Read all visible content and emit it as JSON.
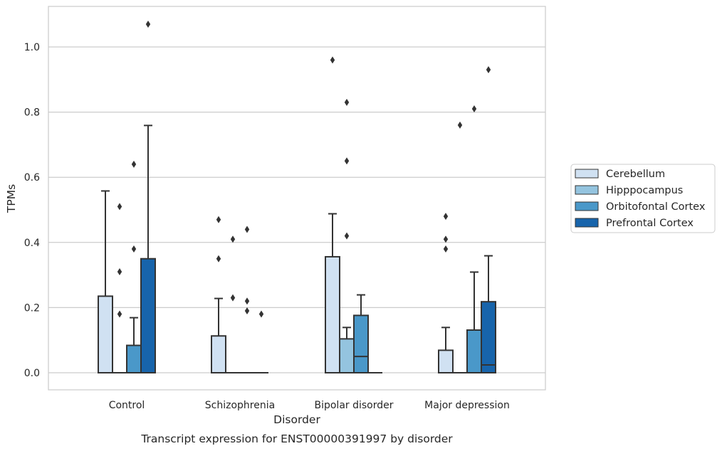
{
  "caption": "Transcript expression for ENST00000391997 by disorder",
  "chart_data": {
    "type": "box",
    "xlabel": "Disorder",
    "ylabel": "TPMs",
    "ylim": [
      -0.05,
      1.13
    ],
    "yticks": [
      "0.0",
      "0.2",
      "0.4",
      "0.6",
      "0.8",
      "1.0"
    ],
    "grid": "horizontal",
    "legend_position": "right",
    "categories": [
      "Control",
      "Schizophrenia",
      "Bipolar disorder",
      "Major depression"
    ],
    "series": [
      {
        "name": "Cerebellum",
        "color": "#d0e1f2",
        "boxes": [
          {
            "q1": 0.0,
            "median": 0.0,
            "q3": 0.235,
            "whisker_low": 0.0,
            "whisker_high": 0.558,
            "outliers": []
          },
          {
            "q1": 0.0,
            "median": 0.0,
            "q3": 0.113,
            "whisker_low": 0.0,
            "whisker_high": 0.228,
            "outliers": [
              0.35,
              0.47
            ]
          },
          {
            "q1": 0.0,
            "median": 0.0,
            "q3": 0.356,
            "whisker_low": 0.0,
            "whisker_high": 0.488,
            "outliers": [
              0.96
            ]
          },
          {
            "q1": 0.0,
            "median": 0.0,
            "q3": 0.069,
            "whisker_low": 0.0,
            "whisker_high": 0.139,
            "outliers": [
              0.38,
              0.41,
              0.48
            ]
          }
        ]
      },
      {
        "name": "Hipppocampus",
        "color": "#94c4df",
        "boxes": [
          {
            "q1": 0.0,
            "median": 0.0,
            "q3": 0.0,
            "whisker_low": 0.0,
            "whisker_high": 0.0,
            "outliers": [
              0.18,
              0.31,
              0.51
            ]
          },
          {
            "q1": 0.0,
            "median": 0.0,
            "q3": 0.0,
            "whisker_low": 0.0,
            "whisker_high": 0.0,
            "outliers": [
              0.23,
              0.41
            ]
          },
          {
            "q1": 0.0,
            "median": 0.0,
            "q3": 0.104,
            "whisker_low": 0.0,
            "whisker_high": 0.139,
            "outliers": [
              0.42,
              0.65,
              0.83
            ]
          },
          {
            "q1": 0.0,
            "median": 0.0,
            "q3": 0.0,
            "whisker_low": 0.0,
            "whisker_high": 0.0,
            "outliers": [
              0.76
            ]
          }
        ]
      },
      {
        "name": "Orbitofontal Cortex",
        "color": "#4a98c9",
        "boxes": [
          {
            "q1": 0.0,
            "median": 0.0,
            "q3": 0.084,
            "whisker_low": 0.0,
            "whisker_high": 0.169,
            "outliers": [
              0.38,
              0.64
            ]
          },
          {
            "q1": 0.0,
            "median": 0.0,
            "q3": 0.0,
            "whisker_low": 0.0,
            "whisker_high": 0.0,
            "outliers": [
              0.19,
              0.22,
              0.44
            ]
          },
          {
            "q1": 0.0,
            "median": 0.05,
            "q3": 0.176,
            "whisker_low": 0.0,
            "whisker_high": 0.239,
            "outliers": []
          },
          {
            "q1": 0.0,
            "median": 0.0,
            "q3": 0.131,
            "whisker_low": 0.0,
            "whisker_high": 0.309,
            "outliers": [
              0.81
            ]
          }
        ]
      },
      {
        "name": "Prefrontal Cortex",
        "color": "#1764ab",
        "boxes": [
          {
            "q1": 0.0,
            "median": 0.0,
            "q3": 0.35,
            "whisker_low": 0.0,
            "whisker_high": 0.759,
            "outliers": [
              1.07
            ]
          },
          {
            "q1": 0.0,
            "median": 0.0,
            "q3": 0.0,
            "whisker_low": 0.0,
            "whisker_high": 0.0,
            "outliers": [
              0.18
            ]
          },
          {
            "q1": 0.0,
            "median": 0.0,
            "q3": 0.0,
            "whisker_low": 0.0,
            "whisker_high": 0.0,
            "outliers": []
          },
          {
            "q1": 0.0,
            "median": 0.024,
            "q3": 0.218,
            "whisker_low": 0.0,
            "whisker_high": 0.359,
            "outliers": [
              0.93
            ]
          }
        ]
      }
    ]
  }
}
